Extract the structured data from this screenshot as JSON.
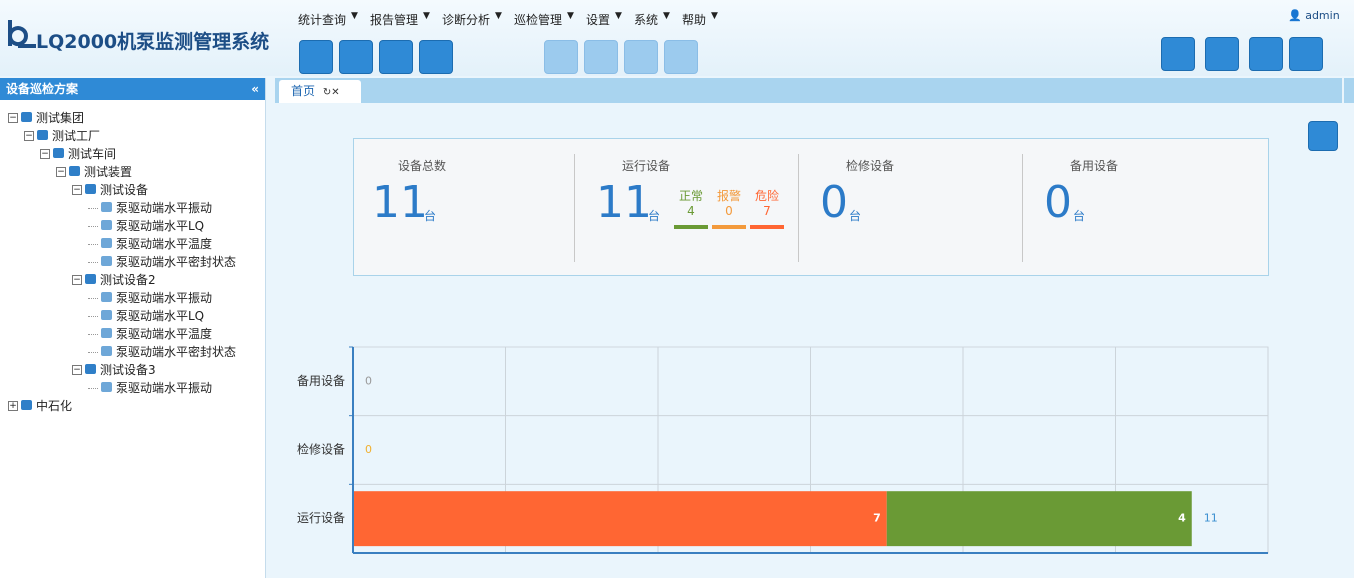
{
  "header": {
    "title": "LQ2000机泵监测管理系统",
    "menu": [
      "统计查询",
      "报告管理",
      "诊断分析",
      "巡检管理",
      "设置",
      "系统",
      "帮助"
    ],
    "user": "admin"
  },
  "sidebar": {
    "title": "设备巡检方案",
    "tree": [
      {
        "label": "测试集团",
        "children": [
          {
            "label": "测试工厂",
            "children": [
              {
                "label": "测试车间",
                "children": [
                  {
                    "label": "测试装置",
                    "children": [
                      {
                        "label": "测试设备",
                        "children": [
                          {
                            "label": "泵驱动端水平振动"
                          },
                          {
                            "label": "泵驱动端水平LQ"
                          },
                          {
                            "label": "泵驱动端水平温度"
                          },
                          {
                            "label": "泵驱动端水平密封状态"
                          }
                        ]
                      },
                      {
                        "label": "测试设备2",
                        "children": [
                          {
                            "label": "泵驱动端水平振动"
                          },
                          {
                            "label": "泵驱动端水平LQ"
                          },
                          {
                            "label": "泵驱动端水平温度"
                          },
                          {
                            "label": "泵驱动端水平密封状态"
                          }
                        ]
                      },
                      {
                        "label": "测试设备3",
                        "children": [
                          {
                            "label": "泵驱动端水平振动"
                          }
                        ]
                      }
                    ]
                  }
                ]
              }
            ]
          }
        ]
      },
      {
        "label": "中石化",
        "collapsed": true
      }
    ]
  },
  "tab": {
    "title": "首页"
  },
  "summary": {
    "total": {
      "label": "设备总数",
      "value": 11,
      "unit": "台"
    },
    "running": {
      "label": "运行设备",
      "value": 11,
      "unit": "台",
      "breakdown": [
        {
          "label": "正常",
          "value": 4,
          "color": "#6a9a35"
        },
        {
          "label": "报警",
          "value": 0,
          "color": "#f39a3c"
        },
        {
          "label": "危险",
          "value": 7,
          "color": "#ff6633"
        }
      ]
    },
    "repair": {
      "label": "检修设备",
      "value": 0,
      "unit": "台"
    },
    "standby": {
      "label": "备用设备",
      "value": 0,
      "unit": "台"
    }
  },
  "chart_data": {
    "type": "bar",
    "orientation": "horizontal",
    "stacked": true,
    "categories": [
      "备用设备",
      "检修设备",
      "运行设备"
    ],
    "series": [
      {
        "color": "#ff6633",
        "values": [
          0,
          0,
          7
        ]
      },
      {
        "color": "#6a9a35",
        "values": [
          0,
          0,
          4
        ]
      }
    ],
    "totals": [
      0,
      0,
      11
    ],
    "total_colors": [
      "#999999",
      "#f0b030",
      "#3a8fd0"
    ],
    "xlim": [
      0,
      12
    ],
    "xticks": [
      0,
      2,
      4,
      6,
      8,
      10,
      12
    ],
    "grid": true
  }
}
